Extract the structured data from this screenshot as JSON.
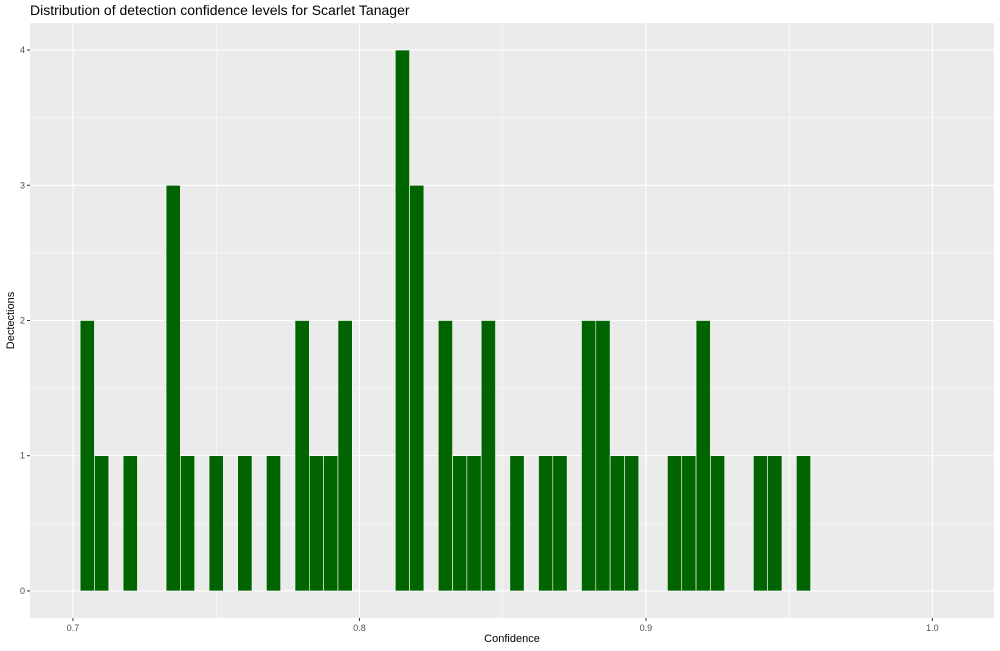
{
  "chart_data": {
    "type": "bar",
    "title": "Distribution of detection confidence levels for Scarlet Tanager",
    "xlabel": "Confidence",
    "ylabel": "Dectections",
    "xlim": [
      0.685,
      1.0215
    ],
    "ylim": [
      -0.2,
      4.2
    ],
    "x_ticks": [
      0.7,
      0.8,
      0.9,
      1.0
    ],
    "x_tick_labels": [
      "0.7",
      "0.8",
      "0.9",
      "1.0"
    ],
    "y_ticks": [
      0,
      1,
      2,
      3,
      4
    ],
    "y_tick_labels": [
      "0",
      "1",
      "2",
      "3",
      "4"
    ],
    "grid": true,
    "bin_width": 0.005,
    "bar_color": "#006400",
    "panel_color": "#ebebeb",
    "x": [
      0.705,
      0.71,
      0.72,
      0.735,
      0.74,
      0.75,
      0.76,
      0.77,
      0.78,
      0.785,
      0.79,
      0.795,
      0.815,
      0.82,
      0.83,
      0.835,
      0.84,
      0.845,
      0.855,
      0.865,
      0.87,
      0.88,
      0.885,
      0.89,
      0.895,
      0.91,
      0.915,
      0.92,
      0.925,
      0.94,
      0.945,
      0.955
    ],
    "values": [
      2,
      1,
      1,
      3,
      1,
      1,
      1,
      1,
      2,
      1,
      1,
      2,
      4,
      3,
      2,
      1,
      1,
      2,
      1,
      1,
      1,
      2,
      2,
      1,
      1,
      1,
      1,
      2,
      1,
      1,
      1,
      1
    ]
  }
}
